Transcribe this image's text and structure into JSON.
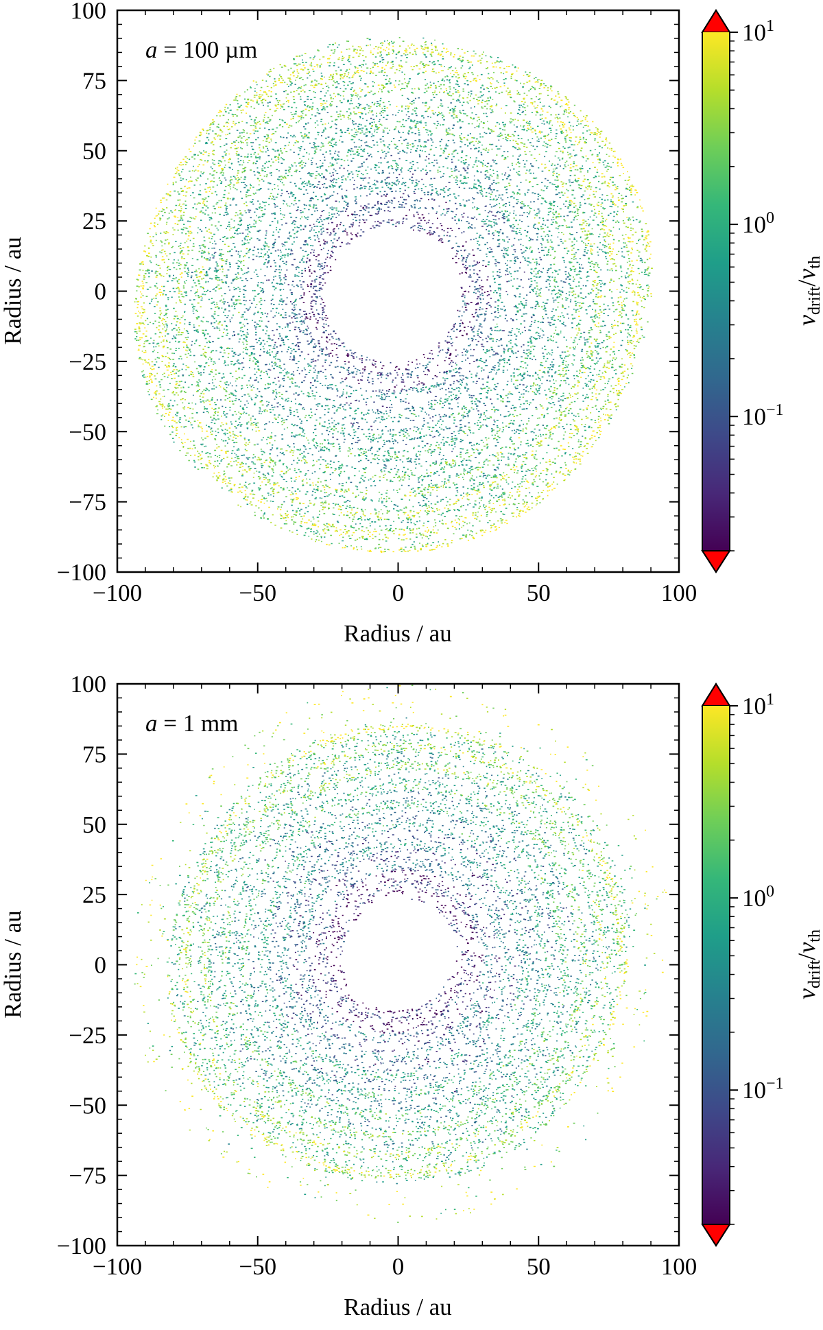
{
  "colormap": {
    "name": "viridis",
    "stops": [
      "#440154",
      "#482878",
      "#3e4989",
      "#31688e",
      "#26828e",
      "#1f9e89",
      "#35b779",
      "#6ece58",
      "#b5de2b",
      "#fde725"
    ],
    "extend_color": "#ff0000",
    "background": "#ffffff"
  },
  "chart_data": [
    {
      "id": "top",
      "type": "scatter",
      "annotation_prefix": "a",
      "annotation_value": " = 100 µm",
      "xlabel": "Radius / au",
      "ylabel": "Radius / au",
      "xlim": [
        -100,
        100
      ],
      "ylim": [
        -100,
        100
      ],
      "xticks": [
        -100,
        -50,
        0,
        50,
        100
      ],
      "yticks": [
        -100,
        -75,
        -50,
        -25,
        0,
        25,
        50,
        75,
        100
      ],
      "xtick_labels": [
        "−100",
        "−50",
        "0",
        "50",
        "100"
      ],
      "ytick_labels": [
        "−100",
        "−75",
        "−50",
        "−25",
        "0",
        "25",
        "50",
        "75",
        "100"
      ],
      "disk": {
        "inner_radius": 24,
        "outer_radius": 92,
        "center": [
          -2,
          -1
        ],
        "description": "dense particle disk; drift velocity ratio increases outward, peaking near 75-85 au"
      },
      "colorbar": {
        "scale": "log",
        "min": 0.02,
        "max": 10,
        "extend": "both",
        "ticks": [
          0.1,
          1,
          10
        ],
        "tick_labels": [
          {
            "base": "10",
            "exp": "−1"
          },
          {
            "base": "10",
            "exp": "0"
          },
          {
            "base": "10",
            "exp": "1"
          }
        ],
        "label_main": "v",
        "label_sub_1": "drift",
        "label_sep": "/",
        "label_main_2": "v",
        "label_sub_2": "th"
      }
    },
    {
      "id": "bottom",
      "type": "scatter",
      "annotation_prefix": "a",
      "annotation_value": " = 1 mm",
      "xlabel": "Radius / au",
      "ylabel": "Radius / au",
      "xlim": [
        -100,
        100
      ],
      "ylim": [
        -100,
        100
      ],
      "xticks": [
        -100,
        -50,
        0,
        50,
        100
      ],
      "yticks": [
        -100,
        -75,
        -50,
        -25,
        0,
        25,
        50,
        75,
        100
      ],
      "xtick_labels": [
        "−100",
        "−50",
        "0",
        "50",
        "100"
      ],
      "ytick_labels": [
        "−100",
        "−75",
        "−50",
        "−25",
        "0",
        "25",
        "50",
        "75",
        "100"
      ],
      "disk": {
        "inner_radius": 20,
        "outer_radius": 82,
        "center": [
          0,
          4
        ],
        "description": "sparser particle disk with scattered outer particles; more low-velocity particles near the inner edge"
      },
      "colorbar": {
        "scale": "log",
        "min": 0.02,
        "max": 10,
        "extend": "both",
        "ticks": [
          0.1,
          1,
          10
        ],
        "tick_labels": [
          {
            "base": "10",
            "exp": "−1"
          },
          {
            "base": "10",
            "exp": "0"
          },
          {
            "base": "10",
            "exp": "1"
          }
        ],
        "label_main": "v",
        "label_sub_1": "drift",
        "label_sep": "/",
        "label_main_2": "v",
        "label_sub_2": "th"
      }
    }
  ]
}
